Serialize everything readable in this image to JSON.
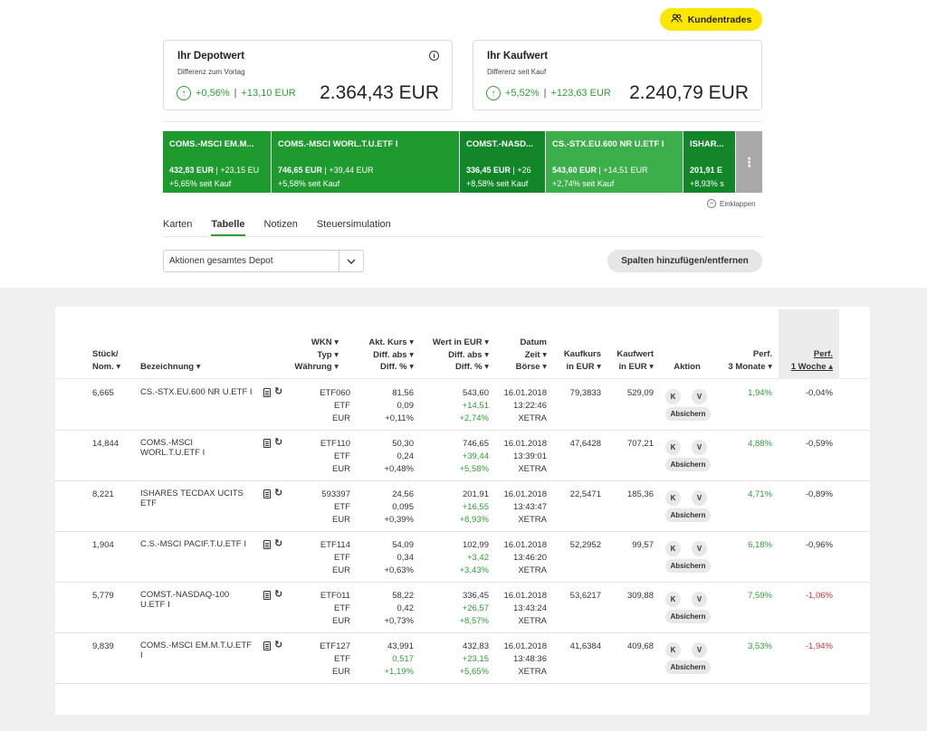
{
  "header": {
    "kundentrades_label": "Kundentrades"
  },
  "depotwert": {
    "title": "Ihr Depotwert",
    "subtitle": "Differenz zum Vortag",
    "change_pct": "+0,56%",
    "change_abs": "+13,10 EUR",
    "value": "2.364,43 EUR",
    "separator": "|"
  },
  "kaufwert": {
    "title": "Ihr Kaufwert",
    "subtitle": "Differenz seit Kauf",
    "change_pct": "+5,52%",
    "change_abs": "+123,63 EUR",
    "value": "2.240,79 EUR",
    "separator": "|"
  },
  "tiles": [
    {
      "name": "COMS.-MSCI EM.M...",
      "value": "432,83 EUR",
      "diff": "| +23,15 EU",
      "perf": "+5,65% seit Kauf",
      "color": "#1e9a2e"
    },
    {
      "name": "COMS.-MSCI WORL.T.U.ETF I",
      "value": "746,65 EUR",
      "diff": "| +39,44 EUR",
      "perf": "+5,58% seit Kauf",
      "color": "#1e9a2e"
    },
    {
      "name": "COMST.-NASD...",
      "value": "336,45 EUR",
      "diff": "| +26",
      "perf": "+8,58% seit Kauf",
      "color": "#13862a"
    },
    {
      "name": "CS.-STX.EU.600 NR U.ETF I",
      "value": "543,60 EUR",
      "diff": "| +14,51 EUR",
      "perf": "+2,74% seit Kauf",
      "color": "#3cae4a"
    },
    {
      "name": "ISHAR...",
      "value": "201,91 E",
      "diff": "",
      "perf": "+8,93% s",
      "color": "#13862a"
    }
  ],
  "collapse_label": "Einklappen",
  "tabs": [
    "Karten",
    "Tabelle",
    "Notizen",
    "Steuersimulation"
  ],
  "filter": {
    "selected": "Aktionen gesamtes Depot"
  },
  "spalten_label": "Spalten hinzufügen/entfernen",
  "table": {
    "headers": {
      "stueck": [
        "Stück/",
        "Nom. ▾"
      ],
      "bezeichnung": "Bezeichnung ▾",
      "wkn": [
        "WKN ▾",
        "Typ ▾",
        "Währung ▾"
      ],
      "kurs": [
        "Akt. Kurs ▾",
        "Diff. abs ▾",
        "Diff. % ▾"
      ],
      "wert": [
        "Wert in EUR ▾",
        "Diff. abs ▾",
        "Diff. % ▾"
      ],
      "datum": [
        "Datum",
        "Zeit ▾",
        "Börse ▾"
      ],
      "kaufkurs": [
        "Kaufkurs",
        "in EUR ▾"
      ],
      "kaufwert": [
        "Kaufwert",
        "in EUR ▾"
      ],
      "aktion": "Aktion",
      "perf3m": [
        "Perf.",
        "3 Monate ▾"
      ],
      "perf1w": [
        "Perf.",
        "1 Woche ▴"
      ]
    },
    "buttons": {
      "k": "K",
      "v": "V",
      "absichern": "Absichern"
    },
    "rows": [
      {
        "stueck": "6,665",
        "name": [
          "CS.-STX.EU.600 NR U.ETF I"
        ],
        "wkn": "ETF060",
        "typ": "ETF",
        "waehrung": "EUR",
        "kurs": "81,56",
        "kurs_diff": "0,09",
        "kurs_pct": "+0,11%",
        "kurs_diff_pos": false,
        "kurs_pct_pos": false,
        "wert": "543,60",
        "wert_diff": "+14,51",
        "wert_pct": "+2,74%",
        "datum": "16.01.2018",
        "zeit": "13:22:46",
        "boerse": "XETRA",
        "kaufkurs": "79,3833",
        "kaufwert": "529,09",
        "perf3m": "1,94%",
        "perf1w": "-0,04%",
        "perf1w_neg": false
      },
      {
        "stueck": "14,844",
        "name": [
          "COMS.-MSCI",
          "WORL.T.U.ETF I"
        ],
        "wkn": "ETF110",
        "typ": "ETF",
        "waehrung": "EUR",
        "kurs": "50,30",
        "kurs_diff": "0,24",
        "kurs_pct": "+0,48%",
        "kurs_diff_pos": false,
        "kurs_pct_pos": false,
        "wert": "746,65",
        "wert_diff": "+39,44",
        "wert_pct": "+5,58%",
        "datum": "16.01.2018",
        "zeit": "13:39:01",
        "boerse": "XETRA",
        "kaufkurs": "47,6428",
        "kaufwert": "707,21",
        "perf3m": "4,88%",
        "perf1w": "-0,59%",
        "perf1w_neg": false
      },
      {
        "stueck": "8,221",
        "name": [
          "ISHARES TECDAX UCITS",
          "ETF"
        ],
        "wkn": "593397",
        "typ": "ETF",
        "waehrung": "EUR",
        "kurs": "24,56",
        "kurs_diff": "0,095",
        "kurs_pct": "+0,39%",
        "kurs_diff_pos": false,
        "kurs_pct_pos": false,
        "wert": "201,91",
        "wert_diff": "+16,55",
        "wert_pct": "+8,93%",
        "datum": "16.01.2018",
        "zeit": "13:43:47",
        "boerse": "XETRA",
        "kaufkurs": "22,5471",
        "kaufwert": "185,36",
        "perf3m": "4,71%",
        "perf1w": "-0,89%",
        "perf1w_neg": false
      },
      {
        "stueck": "1,904",
        "name": [
          "C.S.-MSCI PACIF.T.U.ETF I"
        ],
        "wkn": "ETF114",
        "typ": "ETF",
        "waehrung": "EUR",
        "kurs": "54,09",
        "kurs_diff": "0,34",
        "kurs_pct": "+0,63%",
        "kurs_diff_pos": false,
        "kurs_pct_pos": false,
        "wert": "102,99",
        "wert_diff": "+3,42",
        "wert_pct": "+3,43%",
        "datum": "16.01.2018",
        "zeit": "13:46:20",
        "boerse": "XETRA",
        "kaufkurs": "52,2952",
        "kaufwert": "99,57",
        "perf3m": "6,18%",
        "perf1w": "-0,96%",
        "perf1w_neg": false
      },
      {
        "stueck": "5,779",
        "name": [
          "COMST.-NASDAQ-100",
          "U.ETF I"
        ],
        "wkn": "ETF011",
        "typ": "ETF",
        "waehrung": "EUR",
        "kurs": "58,22",
        "kurs_diff": "0,42",
        "kurs_pct": "+0,73%",
        "kurs_diff_pos": false,
        "kurs_pct_pos": false,
        "wert": "336,45",
        "wert_diff": "+26,57",
        "wert_pct": "+8,57%",
        "datum": "16.01.2018",
        "zeit": "13:43:24",
        "boerse": "XETRA",
        "kaufkurs": "53,6217",
        "kaufwert": "309,88",
        "perf3m": "7,59%",
        "perf1w": "-1,06%",
        "perf1w_neg": true
      },
      {
        "stueck": "9,839",
        "name": [
          "COMS.-MSCI EM.M.T.U.ETF",
          "I"
        ],
        "wkn": "ETF127",
        "typ": "ETF",
        "waehrung": "EUR",
        "kurs": "43,991",
        "kurs_diff": "0,517",
        "kurs_pct": "+1,19%",
        "kurs_diff_pos": true,
        "kurs_pct_pos": true,
        "wert": "432,83",
        "wert_diff": "+23,15",
        "wert_pct": "+5,65%",
        "datum": "16.01.2018",
        "zeit": "13:48:36",
        "boerse": "XETRA",
        "kaufkurs": "41,6384",
        "kaufwert": "409,68",
        "perf3m": "3,53%",
        "perf1w": "-1,94%",
        "perf1w_neg": true
      }
    ]
  },
  "colors": {
    "accent_green": "#2e9e35",
    "negative_red": "#d0303a",
    "brand_yellow": "#ffe600"
  }
}
